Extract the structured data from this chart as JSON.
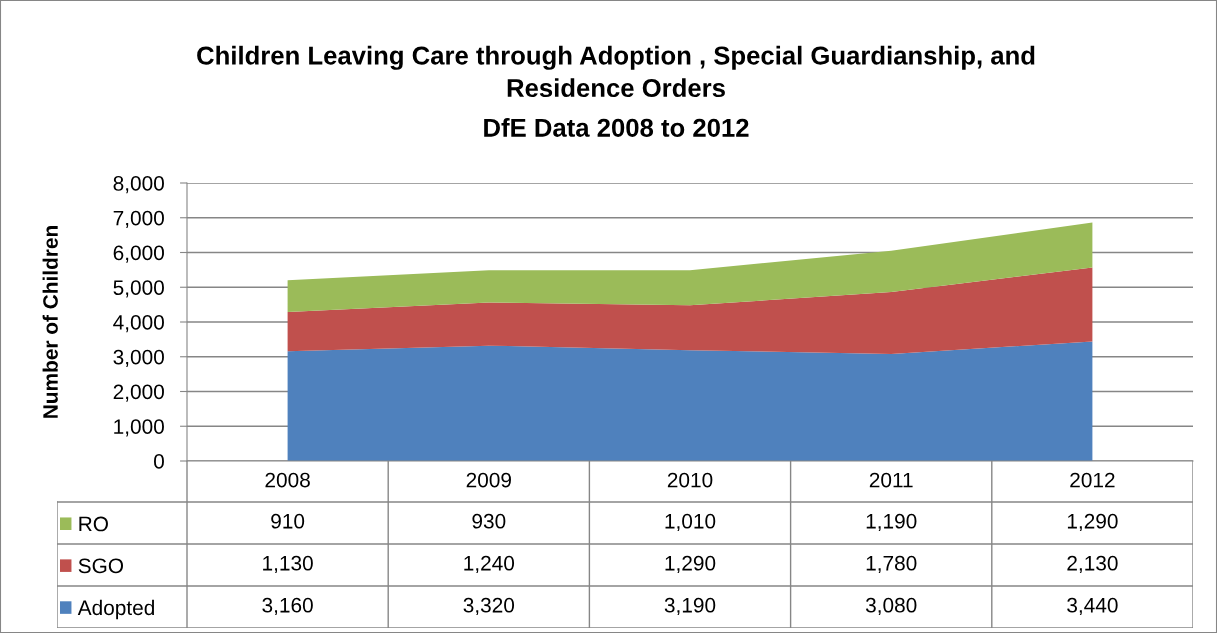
{
  "chart_data": {
    "type": "area",
    "title": "Children Leaving Care through Adoption , Special Guardianship, and Residence Orders",
    "subtitle": "DfE Data 2008 to 2012",
    "ylabel": "Number of Children",
    "categories": [
      "2008",
      "2009",
      "2010",
      "2011",
      "2012"
    ],
    "stacked": true,
    "series": [
      {
        "name": "Adopted",
        "color": "#4f81bd",
        "values": [
          3160,
          3320,
          3190,
          3080,
          3440
        ],
        "value_labels": [
          "3,160",
          "3,320",
          "3,190",
          "3,080",
          "3,440"
        ]
      },
      {
        "name": "SGO",
        "color": "#c0504d",
        "values": [
          1130,
          1240,
          1290,
          1780,
          2130
        ],
        "value_labels": [
          "1,130",
          "1,240",
          "1,290",
          "1,780",
          "2,130"
        ]
      },
      {
        "name": "RO",
        "color": "#9bbb59",
        "values": [
          910,
          930,
          1010,
          1190,
          1290
        ],
        "value_labels": [
          "910",
          "930",
          "1,010",
          "1,190",
          "1,290"
        ]
      }
    ],
    "ylim": [
      0,
      8000
    ],
    "yticks": [
      0,
      {
        "value": 1000,
        "label": "1,000"
      },
      {
        "value": 2000,
        "label": "2,000"
      },
      {
        "value": 3000,
        "label": "3,000"
      },
      {
        "value": 4000,
        "label": "4,000"
      },
      {
        "value": 5000,
        "label": "5,000"
      },
      {
        "value": 6000,
        "label": "6,000"
      },
      {
        "value": 7000,
        "label": "7,000"
      },
      {
        "value": 8000,
        "label": "8,000"
      }
    ],
    "grid": "y",
    "legend": "bottom"
  }
}
